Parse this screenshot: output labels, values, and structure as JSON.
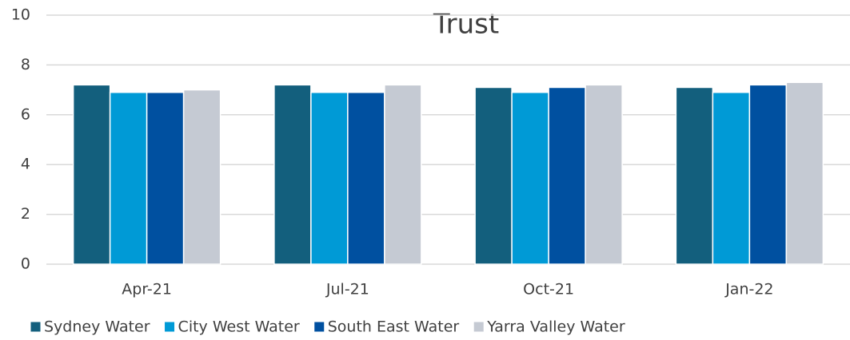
{
  "chart_data": {
    "type": "bar",
    "title": "Trust",
    "categories": [
      "Apr-21",
      "Jul-21",
      "Oct-21",
      "Jan-22"
    ],
    "series": [
      {
        "name": "Sydney Water",
        "color": "#135f7d",
        "values": [
          7.2,
          7.2,
          7.1,
          7.1
        ]
      },
      {
        "name": "City West Water",
        "color": "#009ad6",
        "values": [
          6.9,
          6.9,
          6.9,
          6.9
        ]
      },
      {
        "name": "South East Water",
        "color": "#0050a0",
        "values": [
          6.9,
          6.9,
          7.1,
          7.2
        ]
      },
      {
        "name": "Yarra Valley Water",
        "color": "#c5cad3",
        "values": [
          7.0,
          7.2,
          7.2,
          7.3
        ]
      }
    ],
    "ylim": [
      0,
      10
    ],
    "yticks": [
      0,
      2,
      4,
      6,
      8,
      10
    ],
    "grid": true,
    "legend": "bottom"
  }
}
